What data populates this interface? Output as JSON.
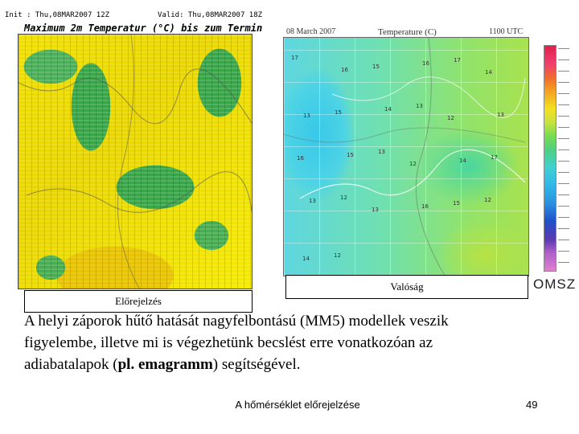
{
  "forecast_map": {
    "init_line": "Init : Thu,08MAR2007 12Z",
    "valid_line": "Valid: Thu,08MAR2007 18Z",
    "title": "Maximum 2m Temperatur (°C) bis zum Termin",
    "caption": "Előrejelzés"
  },
  "observed_map": {
    "date": "08 March 2007",
    "title": "Temperature (C)",
    "time": "1100 UTC",
    "caption": "Valóság",
    "station_values": [
      "17",
      "16",
      "15",
      "16",
      "17",
      "14",
      "13",
      "15",
      "14",
      "13",
      "12",
      "13",
      "16",
      "15",
      "13",
      "12",
      "14",
      "17",
      "13",
      "12",
      "13",
      "16",
      "15",
      "12",
      "14",
      "12"
    ]
  },
  "logo": "OMSZ",
  "body": {
    "line1": "A helyi záporok hűtő hatását nagyfelbontású (MM5) modellek veszik",
    "line2": "figyelembe, illetve mi is végezhetünk becslést erre vonatkozóan az",
    "line3_pre": "adiabatalapok (",
    "line3_bold": "pl. emagramm",
    "line3_post": ") segítségével."
  },
  "footer": {
    "title": "A hőmérséklet előrejelzése",
    "page": "49"
  }
}
